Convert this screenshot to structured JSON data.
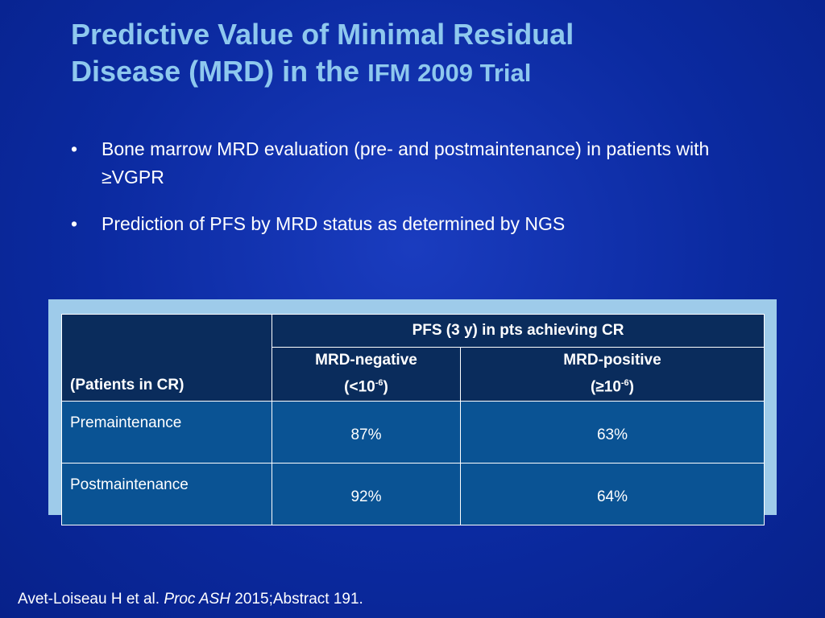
{
  "slide": {
    "title_line1": "Predictive Value of Minimal Residual",
    "title_line2_a": "Disease (MRD) in the ",
    "title_line2_b": "IFM 2009 Trial",
    "bullet_marker": "•",
    "bullets": [
      "Bone marrow MRD evaluation (pre- and postmaintenance) in patients with ≥VGPR",
      "Prediction of PFS by MRD status as determined by NGS"
    ]
  },
  "table": {
    "corner_label": "(Patients in CR)",
    "group_header": "PFS (3 y) in pts achieving CR",
    "col_neg": {
      "line1": "MRD-negative",
      "prefix": "(<10",
      "exp": "-6",
      "suffix": ")"
    },
    "col_pos": {
      "line1": "MRD-positive",
      "prefix": "(≥10",
      "exp": "-6",
      "suffix": ")"
    },
    "rows": [
      {
        "label": "Premaintenance",
        "neg": "87%",
        "pos": "63%"
      },
      {
        "label": "Postmaintenance",
        "neg": "92%",
        "pos": "64%"
      }
    ]
  },
  "footer": {
    "authors": "Avet-Loiseau H et al. ",
    "journal": "Proc ASH",
    "rest": " 2015;Abstract 191."
  },
  "colors": {
    "background": "#0b2aa0",
    "title": "#8ec8ee",
    "table_frame": "#9ecbea",
    "table_header": "#0a2c5c",
    "table_body": "#0a5394"
  }
}
